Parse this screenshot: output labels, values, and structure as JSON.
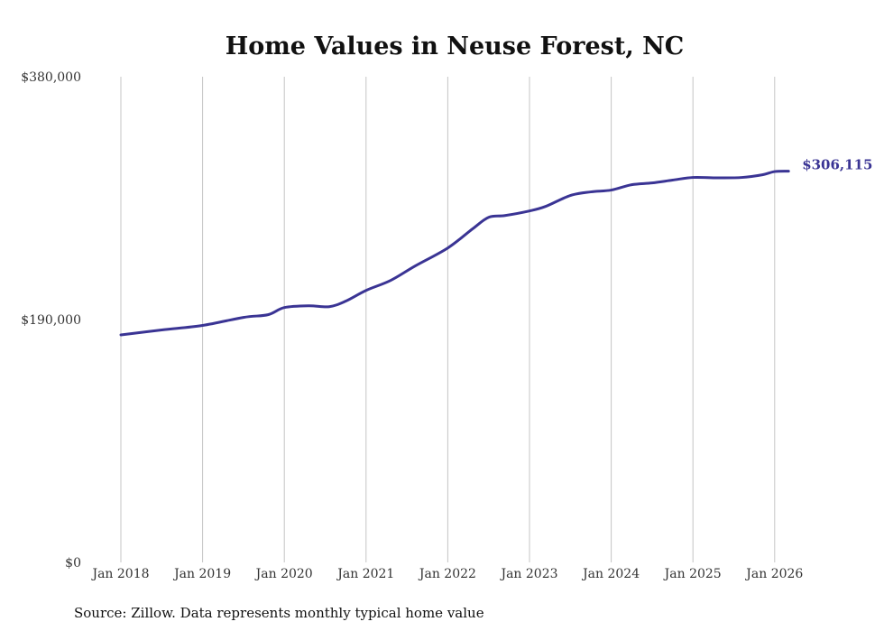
{
  "chart_data": {
    "type": "line",
    "title": "Home Values in Neuse Forest, NC",
    "xlabel": "",
    "ylabel": "",
    "ylim": [
      0,
      380000
    ],
    "xlim": [
      2018.0,
      2026.17
    ],
    "y_ticks": [
      {
        "value": 0,
        "label": "$0"
      },
      {
        "value": 190000,
        "label": "$190,000"
      },
      {
        "value": 380000,
        "label": "$380,000"
      }
    ],
    "x_ticks": [
      {
        "value": 2018,
        "label": "Jan 2018"
      },
      {
        "value": 2019,
        "label": "Jan 2019"
      },
      {
        "value": 2020,
        "label": "Jan 2020"
      },
      {
        "value": 2021,
        "label": "Jan 2021"
      },
      {
        "value": 2022,
        "label": "Jan 2022"
      },
      {
        "value": 2023,
        "label": "Jan 2023"
      },
      {
        "value": 2024,
        "label": "Jan 2024"
      },
      {
        "value": 2025,
        "label": "Jan 2025"
      },
      {
        "value": 2026,
        "label": "Jan 2026"
      }
    ],
    "grid": "vertical",
    "series": [
      {
        "name": "Typical home value",
        "color": "#3a3494",
        "x": [
          2018.0,
          2018.5,
          2019.0,
          2019.5,
          2019.8,
          2020.0,
          2020.3,
          2020.55,
          2020.75,
          2021.0,
          2021.3,
          2021.6,
          2022.0,
          2022.3,
          2022.5,
          2022.7,
          2023.0,
          2023.2,
          2023.5,
          2023.75,
          2024.0,
          2024.25,
          2024.5,
          2024.75,
          2025.0,
          2025.3,
          2025.6,
          2025.85,
          2026.0,
          2026.17
        ],
        "values": [
          178000,
          181900,
          185400,
          191700,
          193800,
          199400,
          200800,
          200100,
          204400,
          212800,
          220600,
          231900,
          246000,
          260800,
          270000,
          271400,
          275000,
          278600,
          287100,
          289900,
          291300,
          295500,
          296900,
          299100,
          301200,
          300900,
          301200,
          303300,
          305800,
          306115
        ]
      }
    ],
    "end_label": "$306,115",
    "source": "Source: Zillow. Data represents monthly typical home value"
  }
}
